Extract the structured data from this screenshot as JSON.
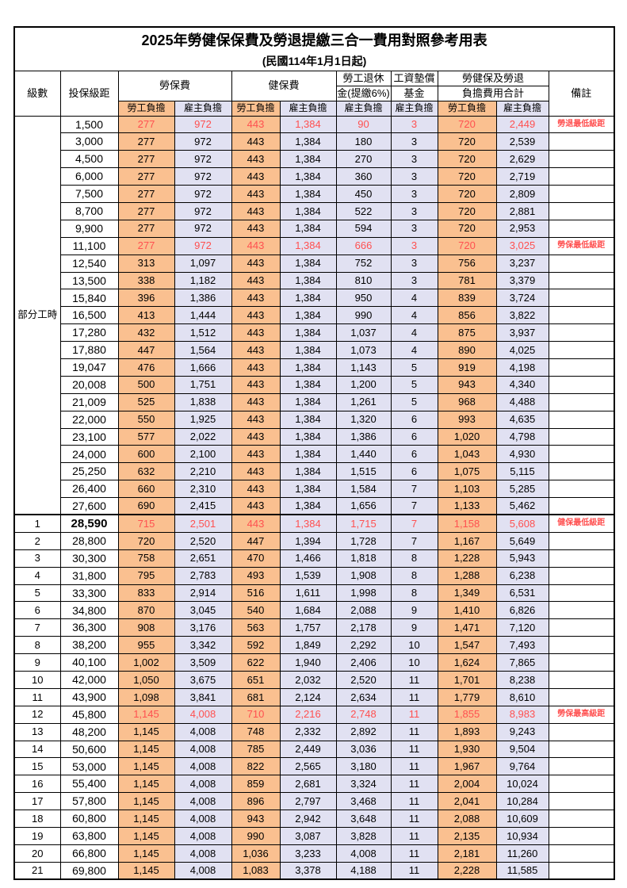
{
  "title": "2025年勞健保保費及勞退提繳三合一費用對照參考用表",
  "subtitle": "(民國114年1月1日起)",
  "colors": {
    "employee_bg": "#FAC090",
    "employer_bg": "#E1E1F2",
    "highlight_text": "#FF5050",
    "border": "#000000"
  },
  "header": {
    "level": "級數",
    "bracket": "投保級距",
    "labor_insurance": "勞保費",
    "health_insurance": "健保費",
    "pension_line1": "勞工退休",
    "pension_line2": "金(提繳6%)",
    "wage_fund_line1": "工資墊償",
    "wage_fund_line2": "基金",
    "total_line1": "勞健保及勞退",
    "total_line2": "負擔費用合計",
    "remark": "備註",
    "employee": "勞工負擔",
    "employer": "雇主負擔"
  },
  "part_time": {
    "label": "部分工時",
    "row_span": 23
  },
  "column_bg_pattern": [
    "emp",
    "er",
    "emp",
    "er",
    "er",
    "er",
    "emp",
    "er"
  ],
  "rows": [
    {
      "level": "",
      "bracket": "1,500",
      "values": [
        "277",
        "972",
        "443",
        "1,384",
        "90",
        "3",
        "720",
        "2,449"
      ],
      "remark": "勞退最低級距",
      "red": true,
      "bold": false
    },
    {
      "level": "",
      "bracket": "3,000",
      "values": [
        "277",
        "972",
        "443",
        "1,384",
        "180",
        "3",
        "720",
        "2,539"
      ],
      "remark": "",
      "red": false,
      "bold": false
    },
    {
      "level": "",
      "bracket": "4,500",
      "values": [
        "277",
        "972",
        "443",
        "1,384",
        "270",
        "3",
        "720",
        "2,629"
      ],
      "remark": "",
      "red": false,
      "bold": false
    },
    {
      "level": "",
      "bracket": "6,000",
      "values": [
        "277",
        "972",
        "443",
        "1,384",
        "360",
        "3",
        "720",
        "2,719"
      ],
      "remark": "",
      "red": false,
      "bold": false
    },
    {
      "level": "",
      "bracket": "7,500",
      "values": [
        "277",
        "972",
        "443",
        "1,384",
        "450",
        "3",
        "720",
        "2,809"
      ],
      "remark": "",
      "red": false,
      "bold": false
    },
    {
      "level": "",
      "bracket": "8,700",
      "values": [
        "277",
        "972",
        "443",
        "1,384",
        "522",
        "3",
        "720",
        "2,881"
      ],
      "remark": "",
      "red": false,
      "bold": false
    },
    {
      "level": "",
      "bracket": "9,900",
      "values": [
        "277",
        "972",
        "443",
        "1,384",
        "594",
        "3",
        "720",
        "2,953"
      ],
      "remark": "",
      "red": false,
      "bold": false
    },
    {
      "level": "",
      "bracket": "11,100",
      "values": [
        "277",
        "972",
        "443",
        "1,384",
        "666",
        "3",
        "720",
        "3,025"
      ],
      "remark": "勞保最低級距",
      "red": true,
      "bold": false
    },
    {
      "level": "",
      "bracket": "12,540",
      "values": [
        "313",
        "1,097",
        "443",
        "1,384",
        "752",
        "3",
        "756",
        "3,237"
      ],
      "remark": "",
      "red": false,
      "bold": false
    },
    {
      "level": "",
      "bracket": "13,500",
      "values": [
        "338",
        "1,182",
        "443",
        "1,384",
        "810",
        "3",
        "781",
        "3,379"
      ],
      "remark": "",
      "red": false,
      "bold": false
    },
    {
      "level": "",
      "bracket": "15,840",
      "values": [
        "396",
        "1,386",
        "443",
        "1,384",
        "950",
        "4",
        "839",
        "3,724"
      ],
      "remark": "",
      "red": false,
      "bold": false
    },
    {
      "level": "",
      "bracket": "16,500",
      "values": [
        "413",
        "1,444",
        "443",
        "1,384",
        "990",
        "4",
        "856",
        "3,822"
      ],
      "remark": "",
      "red": false,
      "bold": false
    },
    {
      "level": "",
      "bracket": "17,280",
      "values": [
        "432",
        "1,512",
        "443",
        "1,384",
        "1,037",
        "4",
        "875",
        "3,937"
      ],
      "remark": "",
      "red": false,
      "bold": false
    },
    {
      "level": "",
      "bracket": "17,880",
      "values": [
        "447",
        "1,564",
        "443",
        "1,384",
        "1,073",
        "4",
        "890",
        "4,025"
      ],
      "remark": "",
      "red": false,
      "bold": false
    },
    {
      "level": "",
      "bracket": "19,047",
      "values": [
        "476",
        "1,666",
        "443",
        "1,384",
        "1,143",
        "5",
        "919",
        "4,198"
      ],
      "remark": "",
      "red": false,
      "bold": false
    },
    {
      "level": "",
      "bracket": "20,008",
      "values": [
        "500",
        "1,751",
        "443",
        "1,384",
        "1,200",
        "5",
        "943",
        "4,340"
      ],
      "remark": "",
      "red": false,
      "bold": false
    },
    {
      "level": "",
      "bracket": "21,009",
      "values": [
        "525",
        "1,838",
        "443",
        "1,384",
        "1,261",
        "5",
        "968",
        "4,488"
      ],
      "remark": "",
      "red": false,
      "bold": false
    },
    {
      "level": "",
      "bracket": "22,000",
      "values": [
        "550",
        "1,925",
        "443",
        "1,384",
        "1,320",
        "6",
        "993",
        "4,635"
      ],
      "remark": "",
      "red": false,
      "bold": false
    },
    {
      "level": "",
      "bracket": "23,100",
      "values": [
        "577",
        "2,022",
        "443",
        "1,384",
        "1,386",
        "6",
        "1,020",
        "4,798"
      ],
      "remark": "",
      "red": false,
      "bold": false
    },
    {
      "level": "",
      "bracket": "24,000",
      "values": [
        "600",
        "2,100",
        "443",
        "1,384",
        "1,440",
        "6",
        "1,043",
        "4,930"
      ],
      "remark": "",
      "red": false,
      "bold": false
    },
    {
      "level": "",
      "bracket": "25,250",
      "values": [
        "632",
        "2,210",
        "443",
        "1,384",
        "1,515",
        "6",
        "1,075",
        "5,115"
      ],
      "remark": "",
      "red": false,
      "bold": false
    },
    {
      "level": "",
      "bracket": "26,400",
      "values": [
        "660",
        "2,310",
        "443",
        "1,384",
        "1,584",
        "7",
        "1,103",
        "5,285"
      ],
      "remark": "",
      "red": false,
      "bold": false
    },
    {
      "level": "",
      "bracket": "27,600",
      "values": [
        "690",
        "2,415",
        "443",
        "1,384",
        "1,656",
        "7",
        "1,133",
        "5,462"
      ],
      "remark": "",
      "red": false,
      "bold": false
    },
    {
      "level": "1",
      "bracket": "28,590",
      "values": [
        "715",
        "2,501",
        "443",
        "1,384",
        "1,715",
        "7",
        "1,158",
        "5,608"
      ],
      "remark": "健保最低級距",
      "red": true,
      "bold": true,
      "section_start": true
    },
    {
      "level": "2",
      "bracket": "28,800",
      "values": [
        "720",
        "2,520",
        "447",
        "1,394",
        "1,728",
        "7",
        "1,167",
        "5,649"
      ],
      "remark": "",
      "red": false,
      "bold": false
    },
    {
      "level": "3",
      "bracket": "30,300",
      "values": [
        "758",
        "2,651",
        "470",
        "1,466",
        "1,818",
        "8",
        "1,228",
        "5,943"
      ],
      "remark": "",
      "red": false,
      "bold": false
    },
    {
      "level": "4",
      "bracket": "31,800",
      "values": [
        "795",
        "2,783",
        "493",
        "1,539",
        "1,908",
        "8",
        "1,288",
        "6,238"
      ],
      "remark": "",
      "red": false,
      "bold": false
    },
    {
      "level": "5",
      "bracket": "33,300",
      "values": [
        "833",
        "2,914",
        "516",
        "1,611",
        "1,998",
        "8",
        "1,349",
        "6,531"
      ],
      "remark": "",
      "red": false,
      "bold": false
    },
    {
      "level": "6",
      "bracket": "34,800",
      "values": [
        "870",
        "3,045",
        "540",
        "1,684",
        "2,088",
        "9",
        "1,410",
        "6,826"
      ],
      "remark": "",
      "red": false,
      "bold": false
    },
    {
      "level": "7",
      "bracket": "36,300",
      "values": [
        "908",
        "3,176",
        "563",
        "1,757",
        "2,178",
        "9",
        "1,471",
        "7,120"
      ],
      "remark": "",
      "red": false,
      "bold": false
    },
    {
      "level": "8",
      "bracket": "38,200",
      "values": [
        "955",
        "3,342",
        "592",
        "1,849",
        "2,292",
        "10",
        "1,547",
        "7,493"
      ],
      "remark": "",
      "red": false,
      "bold": false
    },
    {
      "level": "9",
      "bracket": "40,100",
      "values": [
        "1,002",
        "3,509",
        "622",
        "1,940",
        "2,406",
        "10",
        "1,624",
        "7,865"
      ],
      "remark": "",
      "red": false,
      "bold": false
    },
    {
      "level": "10",
      "bracket": "42,000",
      "values": [
        "1,050",
        "3,675",
        "651",
        "2,032",
        "2,520",
        "11",
        "1,701",
        "8,238"
      ],
      "remark": "",
      "red": false,
      "bold": false
    },
    {
      "level": "11",
      "bracket": "43,900",
      "values": [
        "1,098",
        "3,841",
        "681",
        "2,124",
        "2,634",
        "11",
        "1,779",
        "8,610"
      ],
      "remark": "",
      "red": false,
      "bold": false
    },
    {
      "level": "12",
      "bracket": "45,800",
      "values": [
        "1,145",
        "4,008",
        "710",
        "2,216",
        "2,748",
        "11",
        "1,855",
        "8,983"
      ],
      "remark": "勞保最高級距",
      "red": true,
      "bold": false
    },
    {
      "level": "13",
      "bracket": "48,200",
      "values": [
        "1,145",
        "4,008",
        "748",
        "2,332",
        "2,892",
        "11",
        "1,893",
        "9,243"
      ],
      "remark": "",
      "red": false,
      "bold": false
    },
    {
      "level": "14",
      "bracket": "50,600",
      "values": [
        "1,145",
        "4,008",
        "785",
        "2,449",
        "3,036",
        "11",
        "1,930",
        "9,504"
      ],
      "remark": "",
      "red": false,
      "bold": false
    },
    {
      "level": "15",
      "bracket": "53,000",
      "values": [
        "1,145",
        "4,008",
        "822",
        "2,565",
        "3,180",
        "11",
        "1,967",
        "9,764"
      ],
      "remark": "",
      "red": false,
      "bold": false
    },
    {
      "level": "16",
      "bracket": "55,400",
      "values": [
        "1,145",
        "4,008",
        "859",
        "2,681",
        "3,324",
        "11",
        "2,004",
        "10,024"
      ],
      "remark": "",
      "red": false,
      "bold": false
    },
    {
      "level": "17",
      "bracket": "57,800",
      "values": [
        "1,145",
        "4,008",
        "896",
        "2,797",
        "3,468",
        "11",
        "2,041",
        "10,284"
      ],
      "remark": "",
      "red": false,
      "bold": false
    },
    {
      "level": "18",
      "bracket": "60,800",
      "values": [
        "1,145",
        "4,008",
        "943",
        "2,942",
        "3,648",
        "11",
        "2,088",
        "10,609"
      ],
      "remark": "",
      "red": false,
      "bold": false
    },
    {
      "level": "19",
      "bracket": "63,800",
      "values": [
        "1,145",
        "4,008",
        "990",
        "3,087",
        "3,828",
        "11",
        "2,135",
        "10,934"
      ],
      "remark": "",
      "red": false,
      "bold": false
    },
    {
      "level": "20",
      "bracket": "66,800",
      "values": [
        "1,145",
        "4,008",
        "1,036",
        "3,233",
        "4,008",
        "11",
        "2,181",
        "11,260"
      ],
      "remark": "",
      "red": false,
      "bold": false
    },
    {
      "level": "21",
      "bracket": "69,800",
      "values": [
        "1,145",
        "4,008",
        "1,083",
        "3,378",
        "4,188",
        "11",
        "2,228",
        "11,585"
      ],
      "remark": "",
      "red": false,
      "bold": false
    }
  ]
}
